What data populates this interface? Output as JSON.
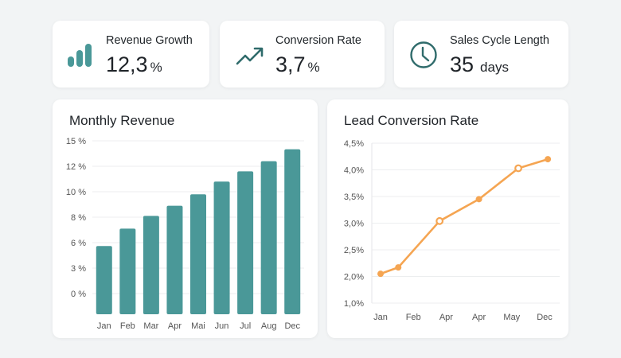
{
  "kpis": [
    {
      "label": "Revenue Growth",
      "value": "12,3",
      "unit": "%",
      "icon": "bar-chart-icon"
    },
    {
      "label": "Conversion Rate",
      "value": "3,7",
      "unit": "%",
      "icon": "trending-up-icon"
    },
    {
      "label": "Sales Cycle Length",
      "value": "35",
      "unit": "days",
      "icon": "clock-icon"
    }
  ],
  "colors": {
    "teal": "#4a9898",
    "orange": "#f5a552",
    "icon": "#2f6b6b"
  },
  "chart_data": [
    {
      "type": "bar",
      "title": "Monthly Revenue",
      "categories": [
        "Jan",
        "Feb",
        "Mar",
        "Apr",
        "Mai",
        "Jun",
        "Jul",
        "Aug",
        "Dec"
      ],
      "values": [
        5.6,
        7.1,
        8.1,
        8.9,
        9.8,
        10.8,
        11.6,
        12.6,
        14.0
      ],
      "yticks": [
        15,
        12,
        10,
        8,
        6,
        3,
        0
      ],
      "ytick_labels": [
        "15 %",
        "12 %",
        "10 %",
        "8 %",
        "6 %",
        "3 %",
        "0 %"
      ],
      "grid": true
    },
    {
      "type": "line",
      "title": "Lead Conversion Rate",
      "categories": [
        "Jan",
        "Feb",
        "Apr",
        "Apr",
        "May",
        "Dec"
      ],
      "x": [
        0,
        0.54,
        1.8,
        3.0,
        4.2,
        5.1
      ],
      "values": [
        2.05,
        2.17,
        3.04,
        3.45,
        4.03,
        4.2
      ],
      "hollow": [
        false,
        false,
        true,
        false,
        true,
        false
      ],
      "yticks": [
        4.5,
        4.0,
        3.5,
        3.0,
        2.5,
        2.0,
        1.0
      ],
      "ytick_labels": [
        "4,5%",
        "4,0%",
        "3,5%",
        "3,0%",
        "2,5%",
        "2,0%",
        "1,0%"
      ],
      "grid": true
    }
  ]
}
